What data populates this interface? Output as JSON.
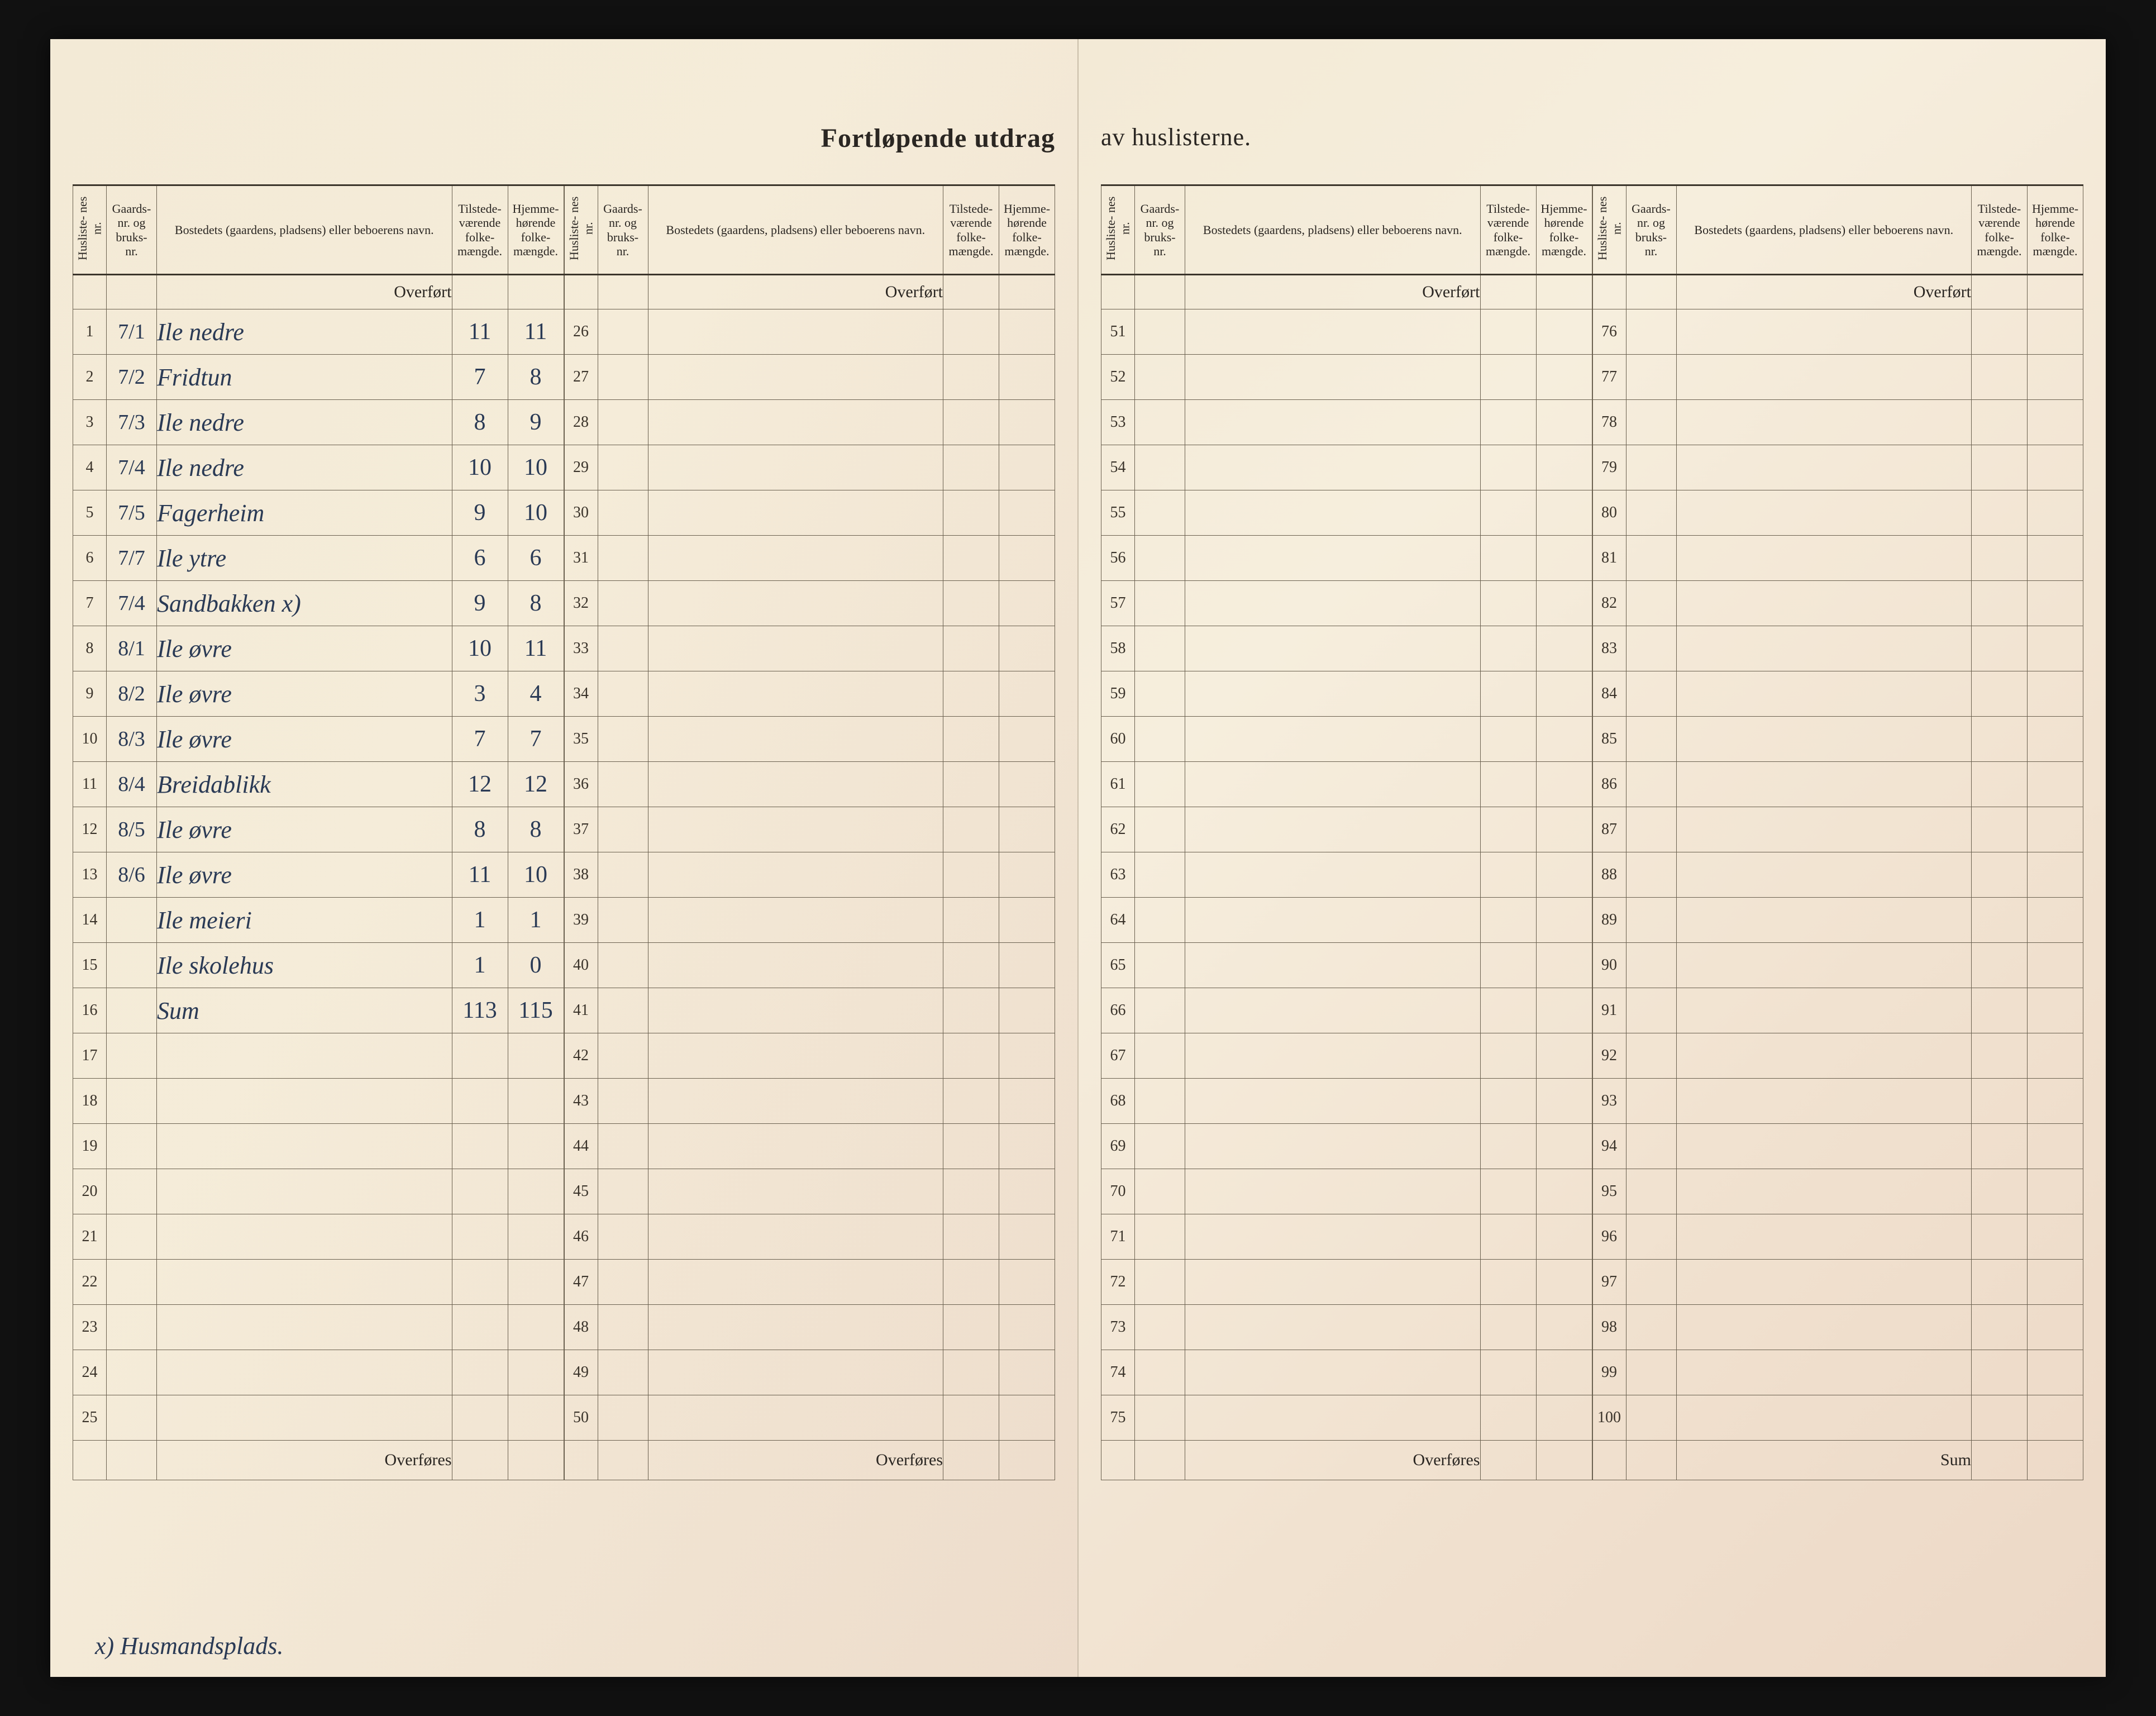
{
  "title_left": "Fortløpende utdrag",
  "title_right": "av huslisterne.",
  "headers": {
    "husliste": "Husliste-\nnes nr.",
    "gaard": "Gaards-\nnr.\nog\nbruks-\nnr.",
    "bosted": "Bostedets (gaardens, pladsens) eller beboerens navn.",
    "tilstede": "Tilstede-\nværende\nfolke-\nmængde.",
    "hjemme": "Hjemme-\nhørende\nfolke-\nmængde."
  },
  "overfort": "Overført",
  "overfores": "Overføres",
  "sum_label": "Sum",
  "footnote": "x) Husmandsplads.",
  "rows_block1": [
    {
      "n": "1",
      "g": "7/1",
      "name": "Ile nedre",
      "t": "11",
      "h": "11"
    },
    {
      "n": "2",
      "g": "7/2",
      "name": "Fridtun",
      "t": "7",
      "h": "8"
    },
    {
      "n": "3",
      "g": "7/3",
      "name": "Ile nedre",
      "t": "8",
      "h": "9"
    },
    {
      "n": "4",
      "g": "7/4",
      "name": "Ile nedre",
      "t": "10",
      "h": "10"
    },
    {
      "n": "5",
      "g": "7/5",
      "name": "Fagerheim",
      "t": "9",
      "h": "10"
    },
    {
      "n": "6",
      "g": "7/7",
      "name": "Ile ytre",
      "t": "6",
      "h": "6"
    },
    {
      "n": "7",
      "g": "7/4",
      "name": "Sandbakken x)",
      "t": "9",
      "h": "8"
    },
    {
      "n": "8",
      "g": "8/1",
      "name": "Ile øvre",
      "t": "10",
      "h": "11"
    },
    {
      "n": "9",
      "g": "8/2",
      "name": "Ile øvre",
      "t": "3",
      "h": "4"
    },
    {
      "n": "10",
      "g": "8/3",
      "name": "Ile øvre",
      "t": "7",
      "h": "7"
    },
    {
      "n": "11",
      "g": "8/4",
      "name": "Breidablikk",
      "t": "12",
      "h": "12"
    },
    {
      "n": "12",
      "g": "8/5",
      "name": "Ile øvre",
      "t": "8",
      "h": "8"
    },
    {
      "n": "13",
      "g": "8/6",
      "name": "Ile øvre",
      "t": "11",
      "h": "10"
    },
    {
      "n": "14",
      "g": "",
      "name": "Ile meieri",
      "t": "1",
      "h": "1"
    },
    {
      "n": "15",
      "g": "",
      "name": "Ile skolehus",
      "t": "1",
      "h": "0"
    },
    {
      "n": "16",
      "g": "",
      "name": "Sum",
      "t": "113",
      "h": "115"
    },
    {
      "n": "17",
      "g": "",
      "name": "",
      "t": "",
      "h": ""
    },
    {
      "n": "18",
      "g": "",
      "name": "",
      "t": "",
      "h": ""
    },
    {
      "n": "19",
      "g": "",
      "name": "",
      "t": "",
      "h": ""
    },
    {
      "n": "20",
      "g": "",
      "name": "",
      "t": "",
      "h": ""
    },
    {
      "n": "21",
      "g": "",
      "name": "",
      "t": "",
      "h": ""
    },
    {
      "n": "22",
      "g": "",
      "name": "",
      "t": "",
      "h": ""
    },
    {
      "n": "23",
      "g": "",
      "name": "",
      "t": "",
      "h": ""
    },
    {
      "n": "24",
      "g": "",
      "name": "",
      "t": "",
      "h": ""
    },
    {
      "n": "25",
      "g": "",
      "name": "",
      "t": "",
      "h": ""
    }
  ],
  "block2_start": 26,
  "block3_start": 51,
  "block4_start": 76
}
